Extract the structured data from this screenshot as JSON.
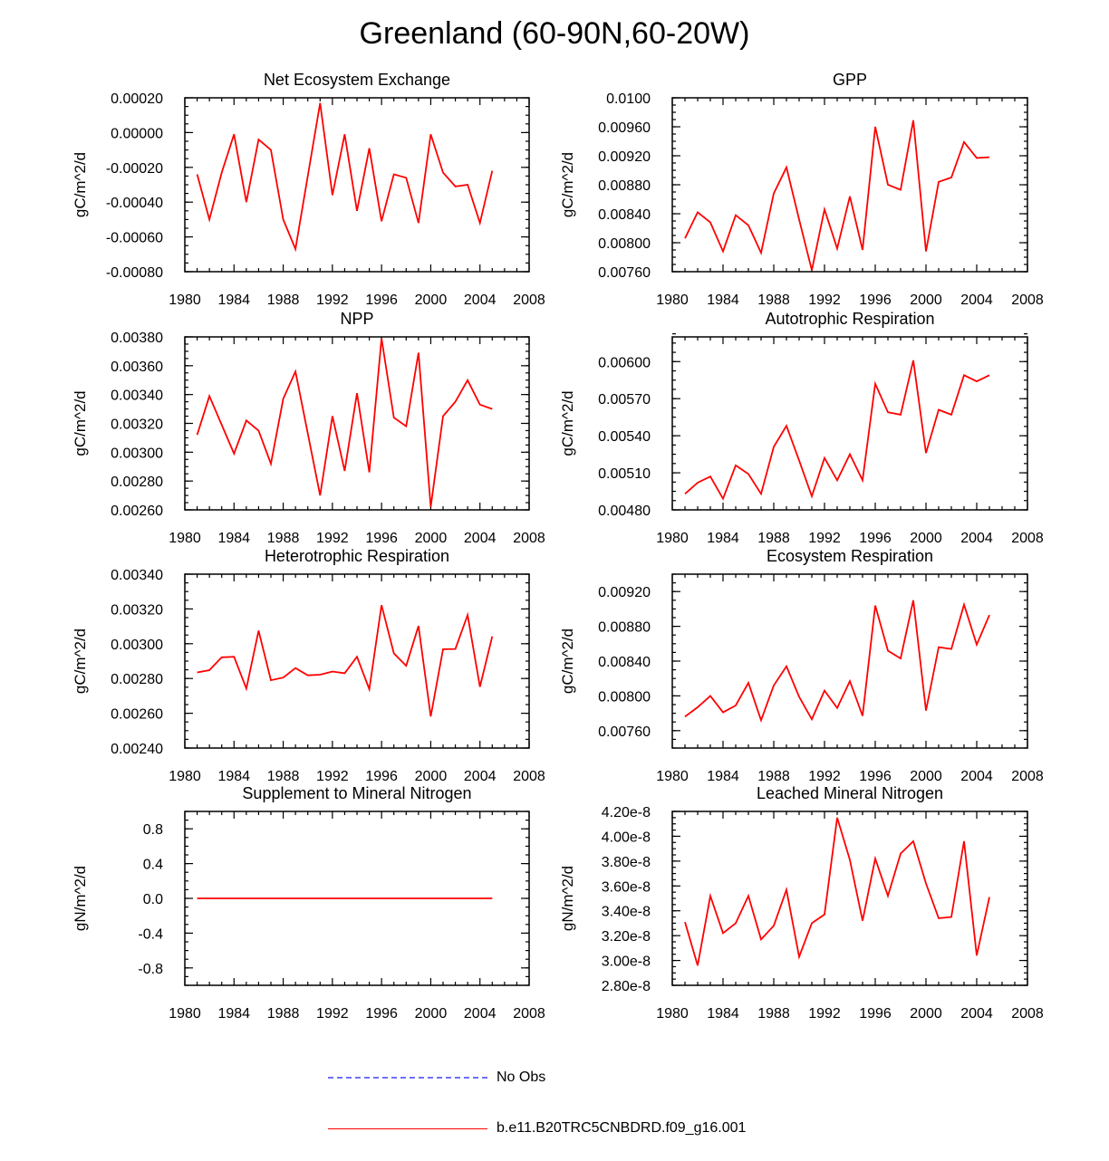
{
  "title": "Greenland (60-90N,60-20W)",
  "colors": {
    "model": "#ff0000",
    "obs": "#6f6fff",
    "axis": "#000000"
  },
  "legend": {
    "items": [
      {
        "label": "No Obs",
        "style": "dashed",
        "color": "#6f6fff"
      },
      {
        "label": "b.e11.B20TRC5CNBDRD.f09_g16.001",
        "style": "solid",
        "color": "#ff0000"
      }
    ]
  },
  "chart_data": [
    {
      "type": "line",
      "title": "Net Ecosystem Exchange",
      "ylabel": "gC/m^2/d",
      "xlabel": "",
      "xlim": [
        1980,
        2008
      ],
      "ylim": [
        -0.0008,
        0.0002
      ],
      "xticks": [
        "1980",
        "1984",
        "1988",
        "1992",
        "1996",
        "2000",
        "2004",
        "2008"
      ],
      "yticks": [
        "-0.00080",
        "-0.00060",
        "-0.00040",
        "-0.00020",
        "0.00000",
        "0.00020"
      ],
      "x": [
        1981,
        1982,
        1983,
        1984,
        1985,
        1986,
        1987,
        1988,
        1989,
        1990,
        1991,
        1992,
        1993,
        1994,
        1995,
        1996,
        1997,
        1998,
        1999,
        2000,
        2001,
        2002,
        2003,
        2004,
        2005
      ],
      "series": [
        {
          "name": "b.e11.B20TRC5CNBDRD.f09_g16.001",
          "values": [
            -0.00024,
            -0.0005,
            -0.00023,
            -1e-05,
            -0.0004,
            -4e-05,
            -0.0001,
            -0.0005,
            -0.00067,
            -0.00025,
            0.00017,
            -0.00036,
            -1e-05,
            -0.00045,
            -9e-05,
            -0.00051,
            -0.00024,
            -0.00026,
            -0.00052,
            -1e-05,
            -0.00023,
            -0.00031,
            -0.0003,
            -0.00052,
            -0.00022
          ]
        }
      ]
    },
    {
      "type": "line",
      "title": "GPP",
      "ylabel": "gC/m^2/d",
      "xlabel": "",
      "xlim": [
        1980,
        2008
      ],
      "ylim": [
        0.0076,
        0.01
      ],
      "xticks": [
        "1980",
        "1984",
        "1988",
        "1992",
        "1996",
        "2000",
        "2004",
        "2008"
      ],
      "yticks": [
        "0.00760",
        "0.00800",
        "0.00840",
        "0.00880",
        "0.00920",
        "0.00960",
        "0.0100"
      ],
      "x": [
        1981,
        1982,
        1983,
        1984,
        1985,
        1986,
        1987,
        1988,
        1989,
        1990,
        1991,
        1992,
        1993,
        1994,
        1995,
        1996,
        1997,
        1998,
        1999,
        2000,
        2001,
        2002,
        2003,
        2004,
        2005
      ],
      "series": [
        {
          "name": "b.e11.B20TRC5CNBDRD.f09_g16.001",
          "values": [
            0.00806,
            0.00842,
            0.00828,
            0.00788,
            0.00838,
            0.00824,
            0.00786,
            0.00868,
            0.00904,
            0.00832,
            0.00762,
            0.00846,
            0.00792,
            0.00864,
            0.0079,
            0.0096,
            0.0088,
            0.00873,
            0.00969,
            0.00788,
            0.00884,
            0.0089,
            0.00939,
            0.00917,
            0.00918
          ]
        }
      ]
    },
    {
      "type": "line",
      "title": "NPP",
      "ylabel": "gC/m^2/d",
      "xlabel": "",
      "xlim": [
        1980,
        2008
      ],
      "ylim": [
        0.0026,
        0.0038
      ],
      "xticks": [
        "1980",
        "1984",
        "1988",
        "1992",
        "1996",
        "2000",
        "2004",
        "2008"
      ],
      "yticks": [
        "0.00260",
        "0.00280",
        "0.00300",
        "0.00320",
        "0.00340",
        "0.00360",
        "0.00380"
      ],
      "x": [
        1981,
        1982,
        1983,
        1984,
        1985,
        1986,
        1987,
        1988,
        1989,
        1990,
        1991,
        1992,
        1993,
        1994,
        1995,
        1996,
        1997,
        1998,
        1999,
        2000,
        2001,
        2002,
        2003,
        2004,
        2005
      ],
      "series": [
        {
          "name": "b.e11.B20TRC5CNBDRD.f09_g16.001",
          "values": [
            0.00312,
            0.00339,
            0.00319,
            0.00299,
            0.00322,
            0.00315,
            0.00292,
            0.00337,
            0.00356,
            0.00313,
            0.0027,
            0.00325,
            0.00287,
            0.00341,
            0.00286,
            0.00379,
            0.00324,
            0.00318,
            0.00369,
            0.00262,
            0.00325,
            0.00335,
            0.0035,
            0.00333,
            0.0033
          ]
        }
      ]
    },
    {
      "type": "line",
      "title": "Autotrophic Respiration",
      "ylabel": "gC/m^2/d",
      "xlabel": "",
      "xlim": [
        1980,
        2008
      ],
      "ylim": [
        0.0048,
        0.0062
      ],
      "xticks": [
        "1980",
        "1984",
        "1988",
        "1992",
        "1996",
        "2000",
        "2004",
        "2008"
      ],
      "yticks": [
        "0.00480",
        "0.00510",
        "0.00540",
        "0.00570",
        "0.00600"
      ],
      "x": [
        1981,
        1982,
        1983,
        1984,
        1985,
        1986,
        1987,
        1988,
        1989,
        1990,
        1991,
        1992,
        1993,
        1994,
        1995,
        1996,
        1997,
        1998,
        1999,
        2000,
        2001,
        2002,
        2003,
        2004,
        2005
      ],
      "series": [
        {
          "name": "b.e11.B20TRC5CNBDRD.f09_g16.001",
          "values": [
            0.00493,
            0.00502,
            0.00507,
            0.00489,
            0.00516,
            0.00509,
            0.00493,
            0.00531,
            0.00548,
            0.0052,
            0.00491,
            0.00522,
            0.00504,
            0.00525,
            0.00504,
            0.00582,
            0.00559,
            0.00557,
            0.00601,
            0.00526,
            0.00561,
            0.00557,
            0.00589,
            0.00584,
            0.00589
          ]
        }
      ]
    },
    {
      "type": "line",
      "title": "Heterotrophic Respiration",
      "ylabel": "gC/m^2/d",
      "xlabel": "",
      "xlim": [
        1980,
        2008
      ],
      "ylim": [
        0.0024,
        0.0034
      ],
      "xticks": [
        "1980",
        "1984",
        "1988",
        "1992",
        "1996",
        "2000",
        "2004",
        "2008"
      ],
      "yticks": [
        "0.00240",
        "0.00260",
        "0.00280",
        "0.00300",
        "0.00320",
        "0.00340"
      ],
      "x": [
        1981,
        1982,
        1983,
        1984,
        1985,
        1986,
        1987,
        1988,
        1989,
        1990,
        1991,
        1992,
        1993,
        1994,
        1995,
        1996,
        1997,
        1998,
        1999,
        2000,
        2001,
        2002,
        2003,
        2004,
        2005
      ],
      "series": [
        {
          "name": "b.e11.B20TRC5CNBDRD.f09_g16.001",
          "values": [
            0.002835,
            0.002848,
            0.002922,
            0.002925,
            0.002742,
            0.003075,
            0.00279,
            0.002805,
            0.00286,
            0.002818,
            0.002822,
            0.00284,
            0.00283,
            0.002925,
            0.002738,
            0.003222,
            0.002945,
            0.002873,
            0.003102,
            0.002582,
            0.002968,
            0.00297,
            0.003165,
            0.002752,
            0.003042
          ]
        }
      ]
    },
    {
      "type": "line",
      "title": "Ecosystem Respiration",
      "ylabel": "gC/m^2/d",
      "xlabel": "",
      "xlim": [
        1980,
        2008
      ],
      "ylim": [
        0.0074,
        0.0094
      ],
      "xticks": [
        "1980",
        "1984",
        "1988",
        "1992",
        "1996",
        "2000",
        "2004",
        "2008"
      ],
      "yticks": [
        "0.00760",
        "0.00800",
        "0.00840",
        "0.00880",
        "0.00920"
      ],
      "x": [
        1981,
        1982,
        1983,
        1984,
        1985,
        1986,
        1987,
        1988,
        1989,
        1990,
        1991,
        1992,
        1993,
        1994,
        1995,
        1996,
        1997,
        1998,
        1999,
        2000,
        2001,
        2002,
        2003,
        2004,
        2005
      ],
      "series": [
        {
          "name": "b.e11.B20TRC5CNBDRD.f09_g16.001",
          "values": [
            0.00776,
            0.00787,
            0.008,
            0.00781,
            0.00789,
            0.00815,
            0.00772,
            0.00812,
            0.00834,
            0.00799,
            0.00773,
            0.00806,
            0.00786,
            0.00817,
            0.00777,
            0.00904,
            0.00852,
            0.00843,
            0.0091,
            0.00783,
            0.00856,
            0.00854,
            0.00905,
            0.00859,
            0.00893
          ]
        }
      ]
    },
    {
      "type": "line",
      "title": "Supplement to Mineral Nitrogen",
      "ylabel": "gN/m^2/d",
      "xlabel": "",
      "xlim": [
        1980,
        2008
      ],
      "ylim": [
        -1.0,
        1.0
      ],
      "xticks": [
        "1980",
        "1984",
        "1988",
        "1992",
        "1996",
        "2000",
        "2004",
        "2008"
      ],
      "yticks": [
        "-0.8",
        "-0.4",
        "0.0",
        "0.4",
        "0.8"
      ],
      "x": [
        1981,
        1982,
        1983,
        1984,
        1985,
        1986,
        1987,
        1988,
        1989,
        1990,
        1991,
        1992,
        1993,
        1994,
        1995,
        1996,
        1997,
        1998,
        1999,
        2000,
        2001,
        2002,
        2003,
        2004,
        2005
      ],
      "series": [
        {
          "name": "b.e11.B20TRC5CNBDRD.f09_g16.001",
          "values": [
            0,
            0,
            0,
            0,
            0,
            0,
            0,
            0,
            0,
            0,
            0,
            0,
            0,
            0,
            0,
            0,
            0,
            0,
            0,
            0,
            0,
            0,
            0,
            0,
            0
          ]
        }
      ]
    },
    {
      "type": "line",
      "title": "Leached Mineral Nitrogen",
      "ylabel": "gN/m^2/d",
      "xlabel": "",
      "xlim": [
        1980,
        2008
      ],
      "ylim": [
        2.8e-08,
        4.2e-08
      ],
      "xticks": [
        "1980",
        "1984",
        "1988",
        "1992",
        "1996",
        "2000",
        "2004",
        "2008"
      ],
      "yticks": [
        "2.80e-8",
        "3.00e-8",
        "3.20e-8",
        "3.40e-8",
        "3.60e-8",
        "3.80e-8",
        "4.00e-8",
        "4.20e-8"
      ],
      "x": [
        1981,
        1982,
        1983,
        1984,
        1985,
        1986,
        1987,
        1988,
        1989,
        1990,
        1991,
        1992,
        1993,
        1994,
        1995,
        1996,
        1997,
        1998,
        1999,
        2000,
        2001,
        2002,
        2003,
        2004,
        2005
      ],
      "series": [
        {
          "name": "b.e11.B20TRC5CNBDRD.f09_g16.001",
          "values": [
            3.31e-08,
            2.96e-08,
            3.52e-08,
            3.22e-08,
            3.3e-08,
            3.52e-08,
            3.17e-08,
            3.28e-08,
            3.57e-08,
            3.03e-08,
            3.3e-08,
            3.37e-08,
            4.15e-08,
            3.81e-08,
            3.32e-08,
            3.82e-08,
            3.52e-08,
            3.86e-08,
            3.96e-08,
            3.62e-08,
            3.34e-08,
            3.35e-08,
            3.96e-08,
            3.04e-08,
            3.51e-08
          ]
        }
      ]
    }
  ]
}
